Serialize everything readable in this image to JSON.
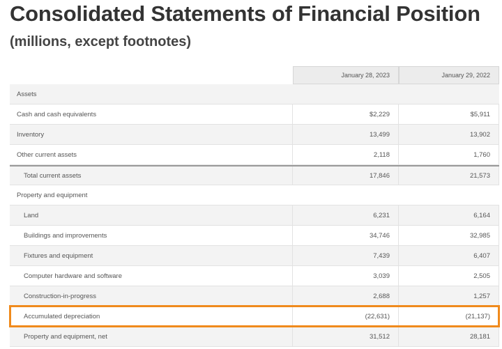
{
  "title": "Consolidated Statements of Financial Position",
  "subtitle": "(millions, except footnotes)",
  "columns": [
    "January 28, 2023",
    "January 29, 2022"
  ],
  "highlight_color": "#f08a1c",
  "rows": [
    {
      "label": "Assets",
      "values": [
        "",
        ""
      ]
    },
    {
      "label": "Cash and cash equivalents",
      "values": [
        "$2,229",
        "$5,911"
      ]
    },
    {
      "label": "Inventory",
      "values": [
        "13,499",
        "13,902"
      ]
    },
    {
      "label": "Other current assets",
      "values": [
        "2,118",
        "1,760"
      ]
    },
    {
      "label": "Total current assets",
      "values": [
        "17,846",
        "21,573"
      ]
    },
    {
      "label": "Property and equipment",
      "values": [
        "",
        ""
      ]
    },
    {
      "label": "Land",
      "values": [
        "6,231",
        "6,164"
      ]
    },
    {
      "label": "Buildings and improvements",
      "values": [
        "34,746",
        "32,985"
      ]
    },
    {
      "label": "Fixtures and equipment",
      "values": [
        "7,439",
        "6,407"
      ]
    },
    {
      "label": "Computer hardware and software",
      "values": [
        "3,039",
        "2,505"
      ]
    },
    {
      "label": "Construction-in-progress",
      "values": [
        "2,688",
        "1,257"
      ]
    },
    {
      "label": "Accumulated depreciation",
      "values": [
        "(22,631)",
        "(21,137)"
      ],
      "highlighted": true
    },
    {
      "label": "Property and equipment, net",
      "values": [
        "31,512",
        "28,181"
      ]
    }
  ]
}
